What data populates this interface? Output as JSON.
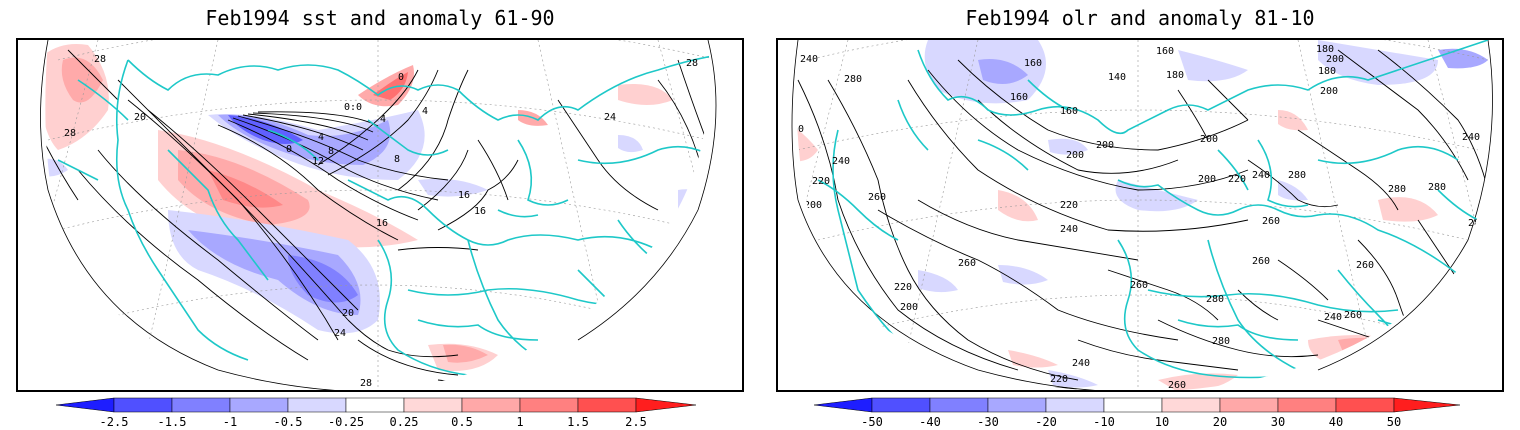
{
  "panels": [
    {
      "id": "sst",
      "title": "Feb1994 sst and anomaly 61-90",
      "contour_labels": [
        "28",
        "28",
        "20",
        "0",
        "0:0",
        "4",
        "0",
        "4",
        "8",
        "12",
        "8",
        "4",
        "16",
        "16",
        "16",
        "20",
        "24",
        "24",
        "28",
        "28",
        "28"
      ],
      "colorbar": {
        "ticks": [
          "-2.5",
          "-1.5",
          "-1",
          "-0.5",
          "-0.25",
          "0.25",
          "0.5",
          "1",
          "1.5",
          "2.5"
        ],
        "colors": [
          "#1e1eff",
          "#5050ff",
          "#8080ff",
          "#a8a8ff",
          "#d8d8ff",
          "#ffffff",
          "#ffd8d8",
          "#ffa8a8",
          "#ff8080",
          "#ff5050",
          "#ff1e1e"
        ]
      }
    },
    {
      "id": "olr",
      "title": "Feb1994 olr and anomaly 81-10",
      "contour_labels": [
        "160",
        "180",
        "200",
        "160",
        "140",
        "180",
        "180",
        "200",
        "240",
        "280",
        "260",
        "160",
        "160",
        "200",
        "200",
        "200",
        "200",
        "220",
        "240",
        "240",
        "220",
        "200",
        "260",
        "220",
        "240",
        "260",
        "280",
        "260",
        "260",
        "220",
        "200",
        "260",
        "280",
        "280",
        "240",
        "260",
        "240",
        "220",
        "260",
        "260",
        "280",
        "280",
        "280",
        "240"
      ],
      "colorbar": {
        "ticks": [
          "-50",
          "-40",
          "-30",
          "-20",
          "-10",
          "10",
          "20",
          "30",
          "40",
          "50"
        ],
        "colors": [
          "#1e1eff",
          "#5050ff",
          "#8080ff",
          "#a8a8ff",
          "#d8d8ff",
          "#ffffff",
          "#ffd8d8",
          "#ffa8a8",
          "#ff8080",
          "#ff5050",
          "#ff1e1e"
        ]
      }
    }
  ],
  "map_style": {
    "coastline_color": "#1ec8c8",
    "contour_color": "#000000",
    "grid_color": "#9a9a9a"
  }
}
